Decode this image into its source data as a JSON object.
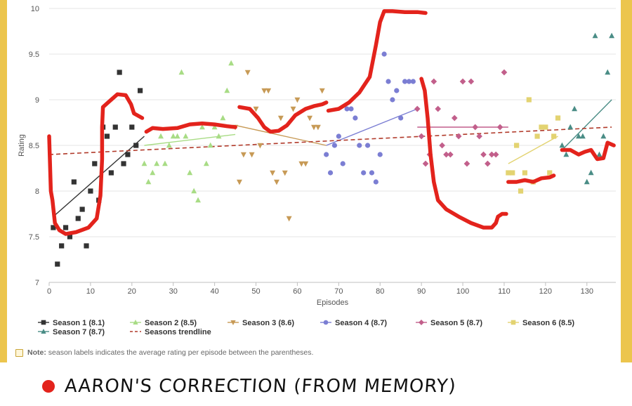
{
  "chart_data": {
    "type": "scatter",
    "xlabel": "Episodes",
    "ylabel": "Rating",
    "xlim": [
      0,
      137
    ],
    "ylim": [
      7,
      10
    ],
    "xticks": [
      0,
      10,
      20,
      30,
      40,
      50,
      60,
      70,
      80,
      90,
      100,
      110,
      120,
      130
    ],
    "yticks": [
      7,
      7.5,
      8,
      8.5,
      9,
      9.5,
      10
    ],
    "grid": "horizontal",
    "legend_position": "bottom",
    "series": [
      {
        "name": "Season 1 (8.1)",
        "marker": "square",
        "color": "#333333",
        "x": [
          1,
          2,
          3,
          4,
          5,
          6,
          7,
          8,
          9,
          10,
          11,
          12,
          13,
          14,
          15,
          16,
          17,
          18,
          19,
          20,
          21,
          22
        ],
        "y": [
          7.6,
          7.2,
          7.4,
          7.6,
          7.5,
          8.1,
          7.7,
          7.8,
          7.4,
          8.0,
          8.3,
          7.9,
          8.7,
          8.6,
          8.2,
          8.7,
          9.3,
          8.3,
          8.4,
          8.7,
          8.5,
          9.1
        ],
        "trend": [
          [
            1,
            7.72
          ],
          [
            23,
            8.6
          ]
        ]
      },
      {
        "name": "Season 2 (8.5)",
        "marker": "triangle-up",
        "color": "#a8dc85",
        "x": [
          23,
          24,
          25,
          26,
          27,
          28,
          29,
          30,
          31,
          32,
          33,
          34,
          35,
          36,
          37,
          38,
          39,
          40,
          41,
          42,
          43,
          44
        ],
        "y": [
          8.3,
          8.1,
          8.2,
          8.3,
          8.6,
          8.3,
          8.5,
          8.6,
          8.6,
          9.3,
          8.6,
          8.2,
          8.0,
          7.9,
          8.7,
          8.3,
          8.5,
          8.7,
          8.6,
          8.8,
          9.1,
          9.4
        ],
        "trend": [
          [
            23,
            8.5
          ],
          [
            45,
            8.62
          ]
        ]
      },
      {
        "name": "Season 3 (8.6)",
        "marker": "triangle-down",
        "color": "#c79a56",
        "x": [
          45,
          46,
          47,
          48,
          49,
          50,
          51,
          52,
          53,
          54,
          55,
          56,
          57,
          58,
          59,
          60,
          61,
          62,
          63,
          64,
          65,
          66
        ],
        "y": [
          8.7,
          8.1,
          8.4,
          9.3,
          8.4,
          8.9,
          8.5,
          9.1,
          9.1,
          8.2,
          8.1,
          8.8,
          8.2,
          7.7,
          8.9,
          9.0,
          8.3,
          8.3,
          8.8,
          8.7,
          8.7,
          9.1
        ],
        "trend": [
          [
            45,
            8.72
          ],
          [
            67,
            8.5
          ]
        ]
      },
      {
        "name": "Season 4 (8.7)",
        "marker": "circle",
        "color": "#7b7ed3",
        "x": [
          67,
          68,
          69,
          70,
          71,
          72,
          73,
          74,
          75,
          76,
          77,
          78,
          79,
          80,
          81,
          82,
          83,
          84,
          85,
          86,
          87,
          88
        ],
        "y": [
          8.4,
          8.2,
          8.5,
          8.6,
          8.3,
          8.9,
          8.9,
          8.8,
          8.5,
          8.2,
          8.5,
          8.2,
          8.1,
          8.4,
          9.5,
          9.2,
          9.0,
          9.1,
          8.8,
          9.2,
          9.2,
          9.2
        ],
        "trend": [
          [
            67,
            8.5
          ],
          [
            89,
            8.9
          ]
        ]
      },
      {
        "name": "Season 5 (8.7)",
        "marker": "diamond",
        "color": "#c25f8b",
        "x": [
          89,
          90,
          91,
          92,
          93,
          94,
          95,
          96,
          97,
          98,
          99,
          100,
          101,
          102,
          103,
          104,
          105,
          106,
          107,
          108,
          109,
          110
        ],
        "y": [
          8.9,
          8.6,
          8.3,
          8.4,
          9.2,
          8.9,
          8.5,
          8.4,
          8.4,
          8.8,
          8.6,
          9.2,
          8.3,
          9.2,
          8.7,
          8.6,
          8.4,
          8.3,
          8.4,
          8.4,
          8.7,
          9.3
        ],
        "trend": [
          [
            89,
            8.7
          ],
          [
            111,
            8.7
          ]
        ]
      },
      {
        "name": "Season 6 (8.5)",
        "marker": "square",
        "color": "#e3d371",
        "x": [
          111,
          112,
          113,
          114,
          115,
          116,
          117,
          118,
          119,
          120,
          121,
          122,
          123
        ],
        "y": [
          8.2,
          8.2,
          8.5,
          8.0,
          8.2,
          9.0,
          8.1,
          8.6,
          8.7,
          8.7,
          8.2,
          8.6,
          8.8
        ],
        "trend": [
          [
            111,
            8.3
          ],
          [
            123,
            8.6
          ]
        ]
      },
      {
        "name": "Season 7 (8.7)",
        "marker": "triangle-up",
        "color": "#4a8d86",
        "x": [
          124,
          125,
          126,
          127,
          128,
          129,
          130,
          131,
          132,
          133,
          134,
          135,
          136
        ],
        "y": [
          8.5,
          8.4,
          8.7,
          8.9,
          8.6,
          8.6,
          8.1,
          8.2,
          9.7,
          8.4,
          8.6,
          9.3,
          9.7
        ],
        "trend": [
          [
            124,
            8.45
          ],
          [
            136,
            9.0
          ]
        ]
      },
      {
        "name": "Seasons trendline",
        "type": "line",
        "dash": "dashed",
        "color": "#b13a2a",
        "x": [
          0,
          136
        ],
        "y": [
          8.4,
          8.7
        ]
      }
    ],
    "annotation": {
      "type": "freehand-line",
      "color": "#e3231c",
      "description_label": "Aaron's correction (from memory)",
      "segments": [
        [
          [
            0,
            8.6
          ],
          [
            0.4,
            8.0
          ],
          [
            0.8,
            7.9
          ],
          [
            1.4,
            7.65
          ],
          [
            2.5,
            7.57
          ],
          [
            4,
            7.53
          ],
          [
            6.5,
            7.55
          ],
          [
            9.5,
            7.6
          ],
          [
            11.5,
            7.7
          ],
          [
            12.4,
            7.95
          ],
          [
            12.8,
            8.35
          ],
          [
            12.8,
            8.7
          ],
          [
            13,
            8.92
          ],
          [
            14.5,
            8.98
          ],
          [
            16.5,
            9.06
          ],
          [
            18.5,
            9.05
          ],
          [
            19.8,
            8.95
          ],
          [
            20.5,
            8.85
          ],
          [
            22.5,
            8.8
          ]
        ],
        [
          [
            23.5,
            8.65
          ],
          [
            25,
            8.69
          ],
          [
            27.5,
            8.68
          ],
          [
            31,
            8.69
          ],
          [
            34,
            8.73
          ],
          [
            37,
            8.74
          ],
          [
            40,
            8.73
          ],
          [
            43,
            8.71
          ],
          [
            45,
            8.7
          ]
        ],
        [
          [
            46,
            8.92
          ],
          [
            48.5,
            8.9
          ],
          [
            50.5,
            8.8
          ],
          [
            52,
            8.7
          ],
          [
            53.5,
            8.65
          ],
          [
            55.5,
            8.66
          ],
          [
            57.5,
            8.72
          ],
          [
            59.5,
            8.83
          ],
          [
            62,
            8.9
          ],
          [
            64,
            8.93
          ],
          [
            66,
            8.95
          ],
          [
            67,
            8.97
          ]
        ],
        [
          [
            67.5,
            8.88
          ],
          [
            70,
            8.9
          ],
          [
            72.5,
            8.97
          ],
          [
            75,
            9.08
          ],
          [
            77.5,
            9.25
          ],
          [
            79,
            9.6
          ],
          [
            80,
            9.85
          ],
          [
            81,
            9.97
          ],
          [
            83,
            9.97
          ],
          [
            86,
            9.96
          ],
          [
            89,
            9.96
          ],
          [
            91,
            9.95
          ]
        ],
        [
          [
            90,
            9.23
          ],
          [
            90.8,
            9.1
          ],
          [
            91.5,
            8.8
          ],
          [
            92.2,
            8.4
          ],
          [
            93,
            8.1
          ],
          [
            94,
            7.9
          ],
          [
            96,
            7.8
          ],
          [
            99,
            7.72
          ],
          [
            102,
            7.65
          ],
          [
            105,
            7.6
          ],
          [
            107,
            7.6
          ],
          [
            108,
            7.65
          ],
          [
            108.5,
            7.72
          ],
          [
            109.5,
            7.75
          ],
          [
            110.5,
            7.75
          ]
        ],
        [
          [
            111,
            8.1
          ],
          [
            113,
            8.1
          ],
          [
            115,
            8.12
          ],
          [
            117,
            8.1
          ],
          [
            119,
            8.14
          ],
          [
            121,
            8.15
          ],
          [
            122,
            8.17
          ]
        ],
        [
          [
            124,
            8.45
          ],
          [
            126,
            8.45
          ],
          [
            128,
            8.4
          ],
          [
            129.5,
            8.43
          ],
          [
            131,
            8.45
          ],
          [
            132.5,
            8.35
          ],
          [
            134,
            8.36
          ],
          [
            135,
            8.53
          ],
          [
            136.5,
            8.5
          ]
        ]
      ]
    }
  },
  "legend_rows": [
    [
      "Season 1 (8.1)",
      "Season 2 (8.5)",
      "Season 3 (8.6)",
      "Season 4 (8.7)",
      "Season 5 (8.7)",
      "Season 6 (8.5)"
    ],
    [
      "Season 7 (8.7)",
      "Seasons trendline"
    ]
  ],
  "note": {
    "label": "Note:",
    "text": "season labels indicates the average rating per episode between the parentheses."
  },
  "caption": {
    "text": "AARON'S CORRECTION (FROM MEMORY)",
    "dot_color": "#e3231c"
  }
}
